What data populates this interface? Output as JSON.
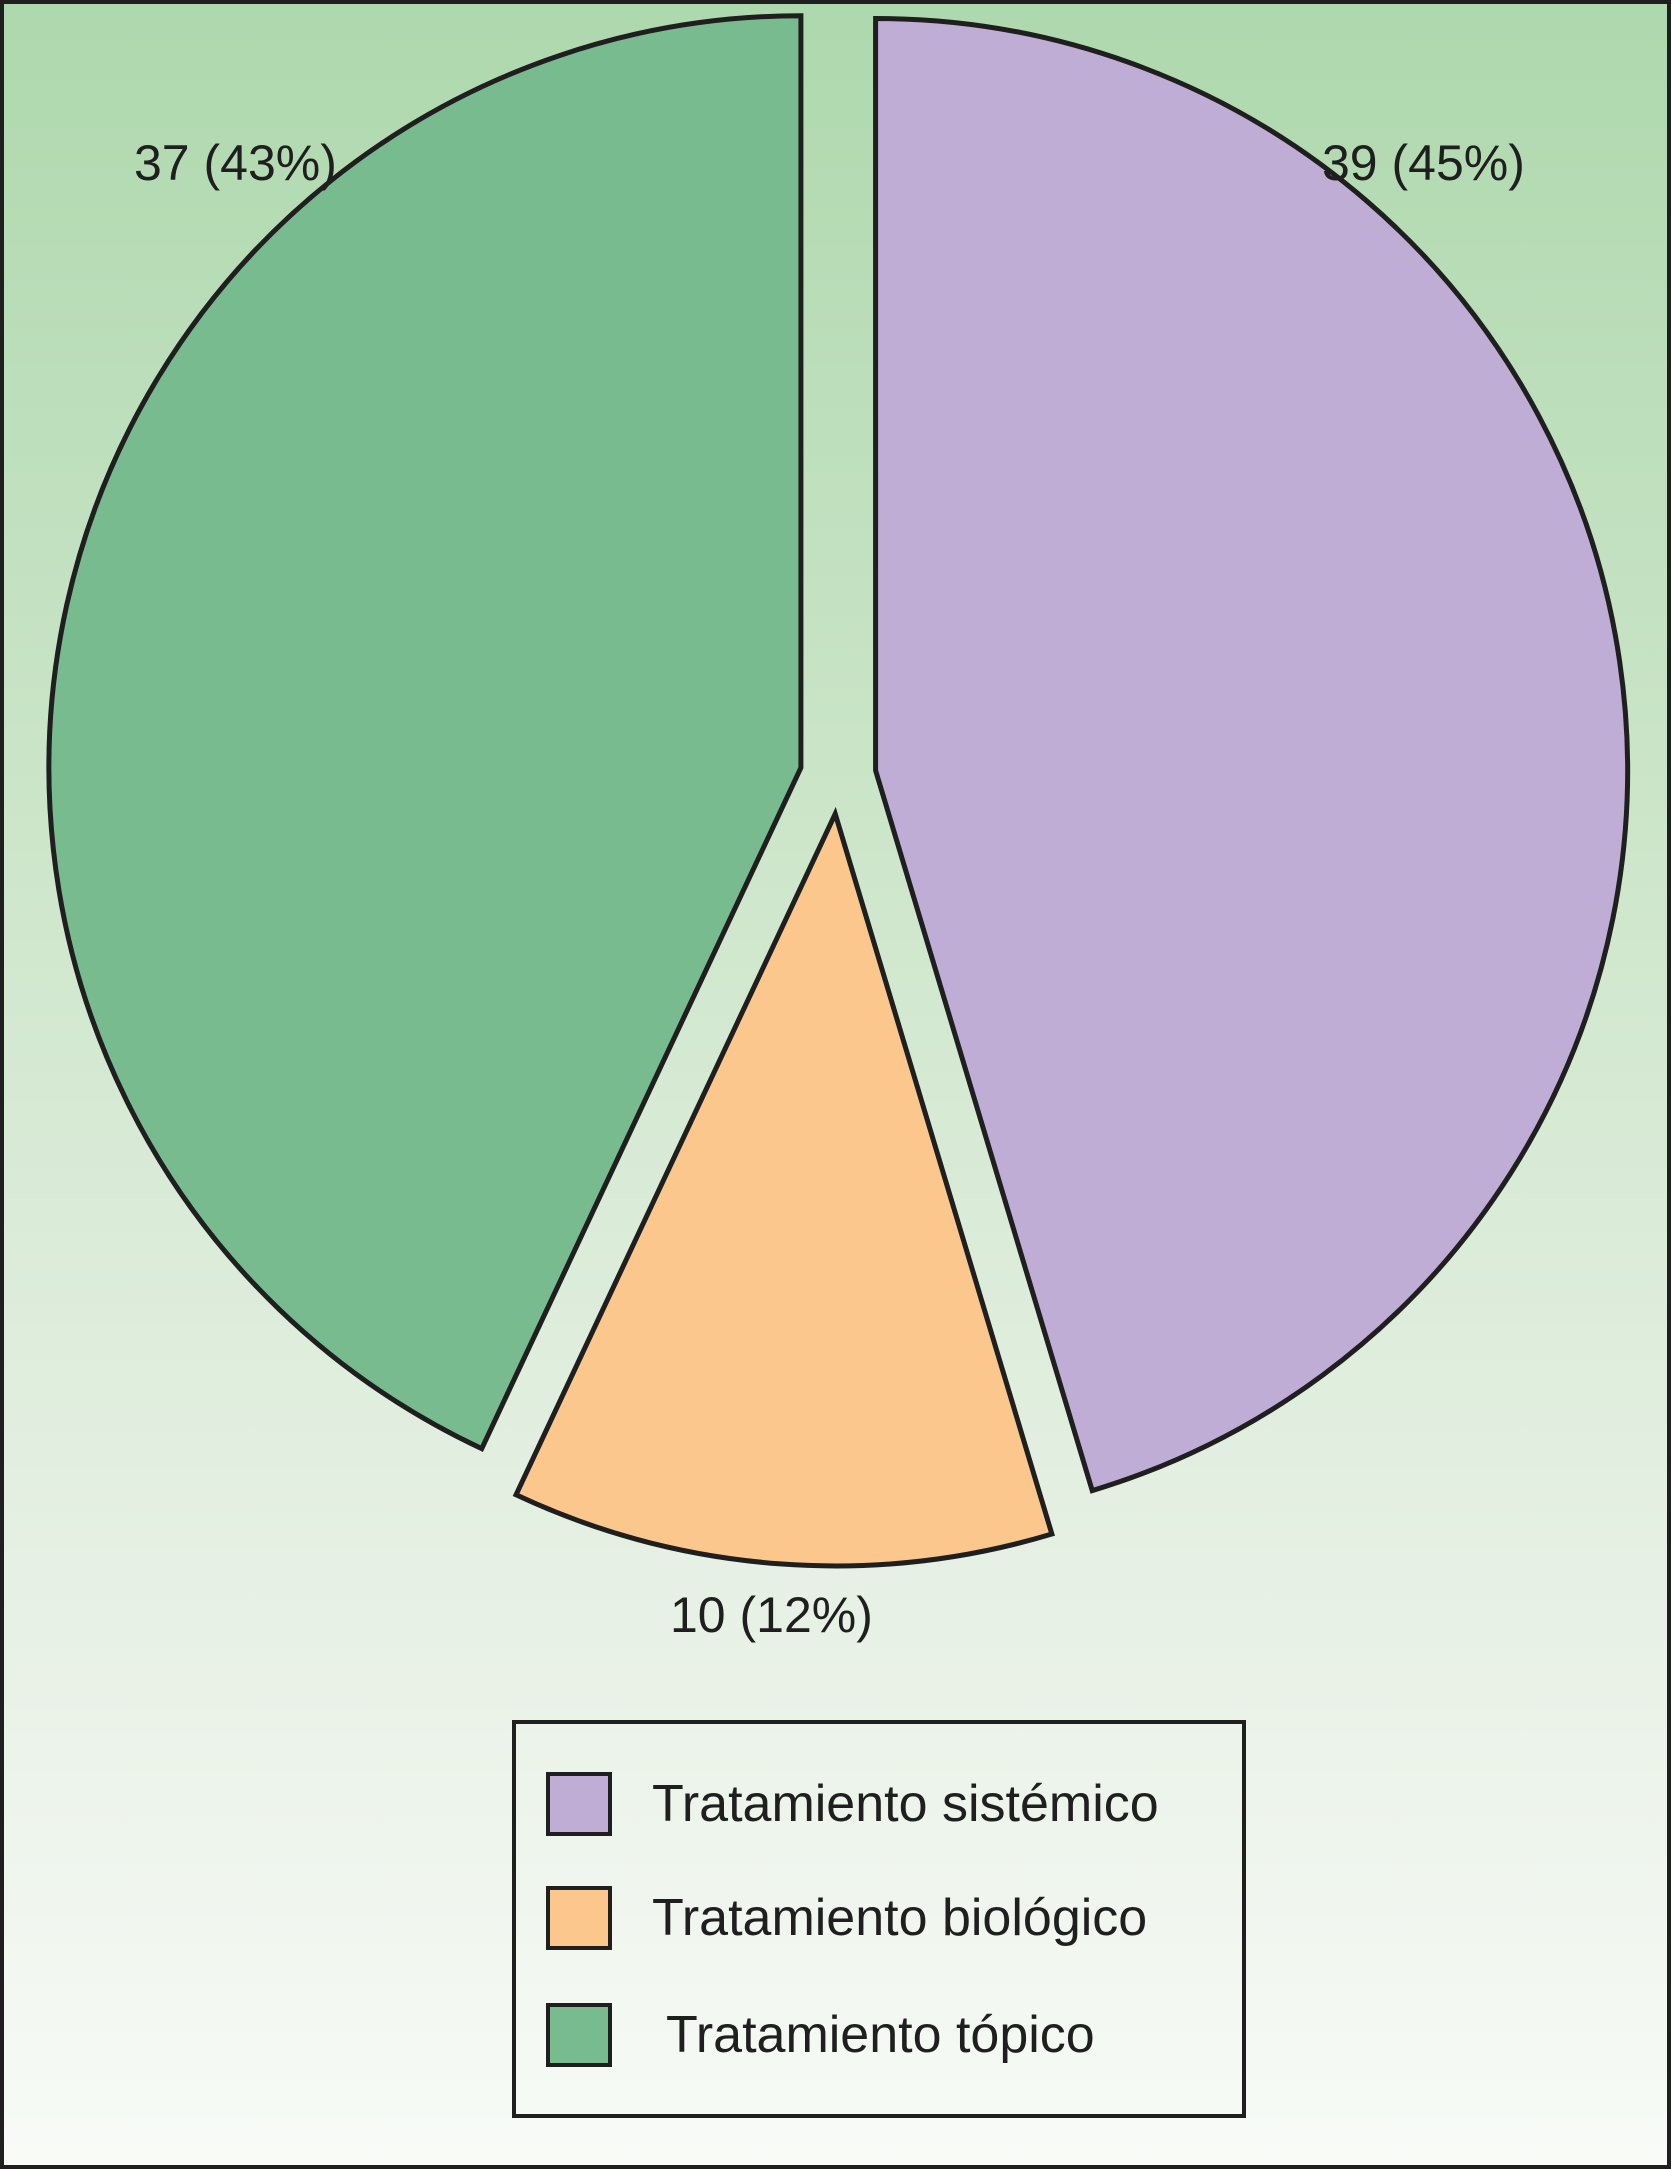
{
  "chart_data": {
    "type": "pie",
    "exploded": true,
    "slices": [
      {
        "label": "Tratamiento sistémico",
        "value": 39,
        "percent": 45,
        "color": "#bfadd5",
        "display": "39 (45%)"
      },
      {
        "label": "Tratamiento biológico",
        "value": 10,
        "percent": 12,
        "color": "#fbc78c",
        "display": "10 (12%)"
      },
      {
        "label": "Tratamiento tópico",
        "value": 37,
        "percent": 43,
        "color": "#78bb8f",
        "display": "37 (43%)"
      }
    ],
    "legend": {
      "position": "bottom",
      "items": [
        "Tratamiento sistémico",
        "Tratamiento biológico",
        "Tratamiento tópico"
      ]
    }
  }
}
